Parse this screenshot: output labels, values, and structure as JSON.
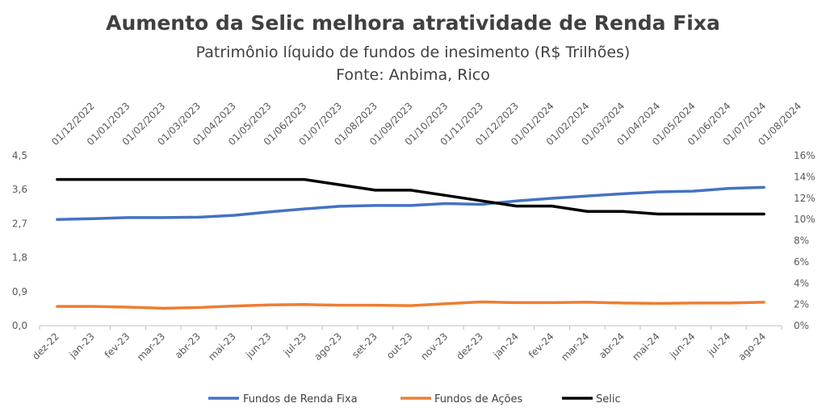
{
  "chart_data": {
    "type": "line",
    "title": "Aumento da Selic melhora atratividade de Renda Fixa",
    "subtitle": "Patrimônio líquido de fundos de inesimento (R$ Trilhões)",
    "source": "Fonte: Anbima, Rico",
    "categories": [
      "dez-22",
      "jan-23",
      "fev-23",
      "mar-23",
      "abr-23",
      "mai-23",
      "jun-23",
      "jul-23",
      "ago-23",
      "set-23",
      "out-23",
      "nov-23",
      "dez-23",
      "jan-24",
      "fev-24",
      "mar-24",
      "abr-24",
      "mai-24",
      "jun-24",
      "jul-24",
      "ago-24"
    ],
    "secondary_x_categories": [
      "01/12/2022",
      "01/01/2023",
      "01/02/2023",
      "01/03/2023",
      "01/04/2023",
      "01/05/2023",
      "01/06/2023",
      "01/07/2023",
      "01/08/2023",
      "01/09/2023",
      "01/10/2023",
      "01/11/2023",
      "01/12/2023",
      "01/01/2024",
      "01/02/2024",
      "01/03/2024",
      "01/04/2024",
      "01/05/2024",
      "01/06/2024",
      "01/07/2024",
      "01/08/2024"
    ],
    "y_left": {
      "ylim": [
        0,
        4.5
      ],
      "ticks": [
        "0,0",
        "0,9",
        "1,8",
        "2,7",
        "3,6",
        "4,5"
      ]
    },
    "y_right": {
      "ylim": [
        0,
        16
      ],
      "ticks": [
        "0%",
        "2%",
        "4%",
        "6%",
        "8%",
        "10%",
        "12%",
        "14%",
        "16%"
      ]
    },
    "series": [
      {
        "name": "Fundos de Renda Fixa",
        "axis": "left",
        "color": "#4472c4",
        "values": [
          2.81,
          2.83,
          2.86,
          2.86,
          2.87,
          2.92,
          3.01,
          3.09,
          3.16,
          3.18,
          3.18,
          3.23,
          3.21,
          3.3,
          3.37,
          3.43,
          3.49,
          3.54,
          3.56,
          3.63,
          3.66
        ]
      },
      {
        "name": "Fundos de Ações",
        "axis": "left",
        "color": "#ed7d31",
        "values": [
          0.51,
          0.51,
          0.49,
          0.46,
          0.48,
          0.52,
          0.55,
          0.56,
          0.54,
          0.54,
          0.53,
          0.58,
          0.63,
          0.61,
          0.61,
          0.62,
          0.6,
          0.59,
          0.6,
          0.6,
          0.62
        ]
      },
      {
        "name": "Selic",
        "axis": "right",
        "color": "#000000",
        "values": [
          13.75,
          13.75,
          13.75,
          13.75,
          13.75,
          13.75,
          13.75,
          13.75,
          13.25,
          12.75,
          12.75,
          12.25,
          11.75,
          11.25,
          11.25,
          10.75,
          10.75,
          10.5,
          10.5,
          10.5,
          10.5
        ]
      }
    ],
    "legend_position": "bottom"
  }
}
